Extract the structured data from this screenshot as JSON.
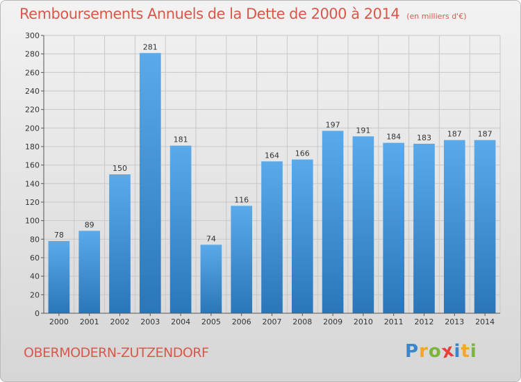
{
  "header": {
    "title": "Remboursements Annuels de la Dette de 2000 à 2014",
    "unit": "(en milliers d'€)"
  },
  "footer": {
    "city": "OBERMODERN-ZUTZENDORF",
    "logo_letters": [
      "P",
      "r",
      "o",
      "x",
      "i",
      "t",
      "i"
    ],
    "logo_colors": [
      "#3a86c8",
      "#f2a62a",
      "#7bb53a",
      "#e8403a",
      "#3a86c8",
      "#f2a62a",
      "#7bb53a"
    ]
  },
  "chart_data": {
    "type": "bar",
    "title": "Remboursements Annuels de la Dette de 2000 à 2014",
    "categories": [
      "2000",
      "2001",
      "2002",
      "2003",
      "2004",
      "2005",
      "2006",
      "2007",
      "2008",
      "2009",
      "2010",
      "2011",
      "2012",
      "2013",
      "2014"
    ],
    "values": [
      78,
      89,
      150,
      281,
      181,
      74,
      116,
      164,
      166,
      197,
      191,
      184,
      183,
      187,
      187
    ],
    "ylim": [
      0,
      300
    ],
    "yticks": [
      0,
      20,
      40,
      60,
      80,
      100,
      120,
      140,
      160,
      180,
      200,
      220,
      240,
      260,
      280,
      300
    ],
    "grid": true,
    "bar_color_top": "#5aaaeb",
    "bar_color_bottom": "#2a76b8"
  }
}
